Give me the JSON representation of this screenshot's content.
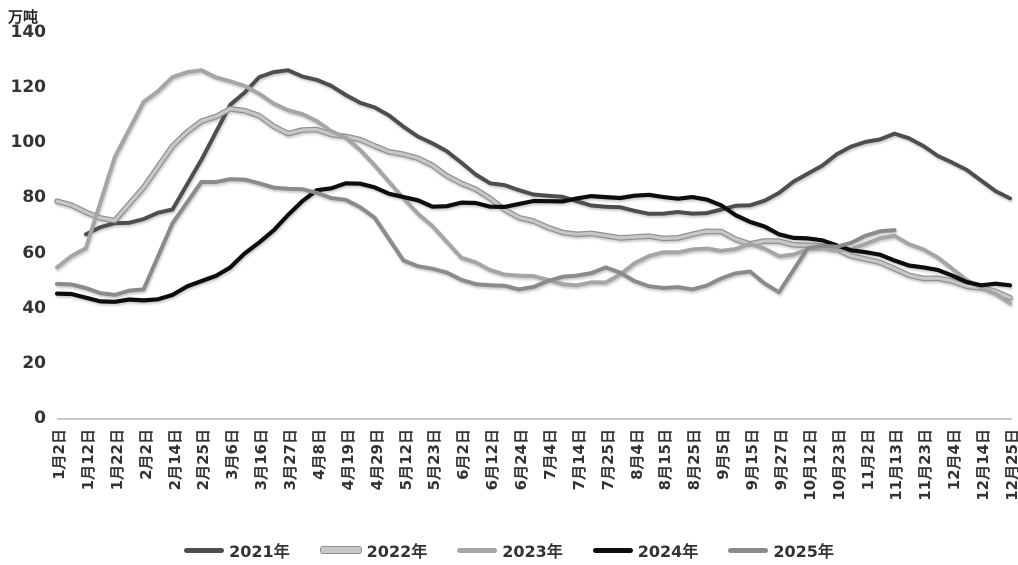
{
  "unit_label": "万吨",
  "y_axis": {
    "ticks": [
      0,
      20,
      40,
      60,
      80,
      100,
      120,
      140
    ],
    "min": 0,
    "max": 140
  },
  "chart_data": {
    "type": "line",
    "title": "",
    "ylabel": "万吨",
    "ylim": [
      0,
      140
    ],
    "grid": false,
    "legend_position": "bottom",
    "categories": [
      "1月2日",
      "1月12日",
      "1月22日",
      "2月2日",
      "2月14日",
      "2月25日",
      "3月6日",
      "3月16日",
      "3月27日",
      "4月8日",
      "4月19日",
      "4月29日",
      "5月12日",
      "5月23日",
      "6月2日",
      "6月12日",
      "6月24日",
      "7月4日",
      "7月14日",
      "7月25日",
      "8月4日",
      "8月15日",
      "8月25日",
      "9月5日",
      "9月15日",
      "9月27日",
      "10月12日",
      "10月23日",
      "11月2日",
      "11月13日",
      "11月23日",
      "12月4日",
      "12月14日",
      "12月25日"
    ],
    "series": [
      {
        "name": "2021年",
        "color": "#4e4e4e",
        "width": 4,
        "outlined": false,
        "values": [
          null,
          67,
          71,
          72.5,
          76,
          94,
          114,
          124,
          126.5,
          123,
          117.5,
          113,
          106,
          100,
          93,
          85.5,
          83,
          81,
          79,
          77,
          75.5,
          74.5,
          74.5,
          76,
          77.5,
          82,
          89,
          96,
          100.5,
          103.5,
          99,
          93,
          86.5,
          80
        ]
      },
      {
        "name": "2022年",
        "color": "#c7c7c7",
        "outline_color": "#8f8f8f",
        "width": 3.2,
        "outlined": true,
        "values": [
          79,
          75,
          72,
          84,
          99,
          108,
          112.5,
          110,
          103.5,
          105,
          102.5,
          99,
          96,
          92,
          85.5,
          80,
          73,
          69.5,
          67,
          66.5,
          66,
          65.5,
          67,
          68,
          63.5,
          64.5,
          63,
          61.5,
          58,
          54.5,
          51,
          50,
          47.5,
          44
        ]
      },
      {
        "name": "2023年",
        "color": "#a5a5a5",
        "width": 4,
        "outlined": false,
        "values": [
          55,
          62,
          95,
          115,
          124,
          126.5,
          122.5,
          118,
          112,
          108,
          102,
          92,
          80,
          70,
          58.5,
          54,
          52,
          50.5,
          48.5,
          49.5,
          56.5,
          60.5,
          61.5,
          61,
          63.5,
          59,
          61.5,
          61,
          63.5,
          66.5,
          61.5,
          54.5,
          47.5,
          42
        ]
      },
      {
        "name": "2024年",
        "color": "#0d0d0d",
        "width": 4.2,
        "outlined": false,
        "values": [
          45.5,
          44,
          42.5,
          43,
          45,
          50,
          55,
          64,
          74,
          83,
          85.5,
          84,
          80.5,
          77,
          78.5,
          77,
          78,
          79,
          80,
          80.5,
          81,
          80.5,
          80.5,
          77.5,
          71.5,
          67,
          65.5,
          63,
          60.5,
          57.5,
          55,
          52,
          48.5,
          48.5
        ]
      },
      {
        "name": "2025年",
        "color": "#8b8b8b",
        "width": 4,
        "outlined": false,
        "values": [
          49,
          47.5,
          45,
          47,
          71,
          86,
          87,
          85.5,
          83.5,
          82,
          79.5,
          73,
          57.5,
          54.5,
          50.5,
          48.5,
          47,
          50,
          52,
          55,
          50,
          47.5,
          47,
          51,
          53.5,
          46,
          62,
          62.5,
          66.5,
          68.5,
          null,
          null,
          null,
          null
        ]
      }
    ]
  }
}
